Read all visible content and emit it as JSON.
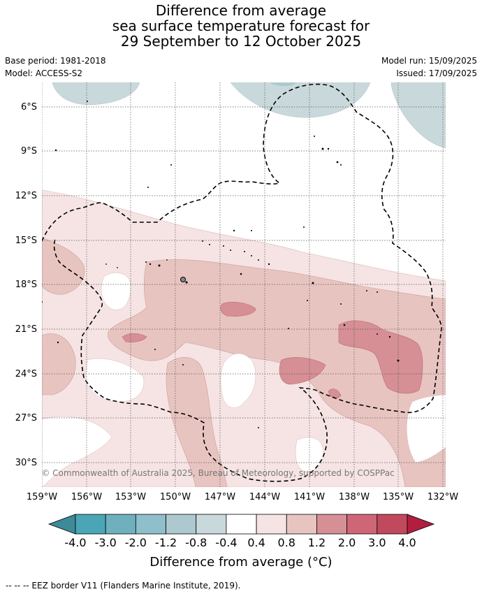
{
  "title_lines": [
    "Difference from average",
    "sea surface temperature forecast for",
    "29 September to 12 October 2025"
  ],
  "meta_left": [
    "Base period: 1981-2018",
    "Model: ACCESS-S2"
  ],
  "meta_right": [
    "Model run: 15/09/2025",
    "Issued: 17/09/2025"
  ],
  "map": {
    "lat_ticks": [
      "6°S",
      "9°S",
      "12°S",
      "15°S",
      "18°S",
      "21°S",
      "24°S",
      "27°S",
      "30°S"
    ],
    "lon_ticks": [
      "159°W",
      "156°W",
      "153°W",
      "150°W",
      "147°W",
      "144°W",
      "141°W",
      "138°W",
      "135°W",
      "132°W"
    ],
    "credit": "© Commonwealth of Australia 2025, Bureau of Meteorology, supported by COSPPac"
  },
  "colorbar": {
    "labels": [
      "-4.0",
      "-3.0",
      "-2.0",
      "-1.2",
      "-0.8",
      "-0.4",
      "0.4",
      "0.8",
      "1.2",
      "2.0",
      "3.0",
      "4.0"
    ],
    "colors": [
      "#3d8a98",
      "#4aa6b6",
      "#6fb0bf",
      "#8fbfca",
      "#adc9cf",
      "#c9d8db",
      "#ffffff",
      "#f5e4e3",
      "#e8c4c1",
      "#d58f95",
      "#cf6676",
      "#c04a5c",
      "#b21e3e"
    ],
    "title": "Difference from average (°C)"
  },
  "eez_note": "--  --  -- EEZ border V11 (Flanders Marine Institute, 2019)."
}
